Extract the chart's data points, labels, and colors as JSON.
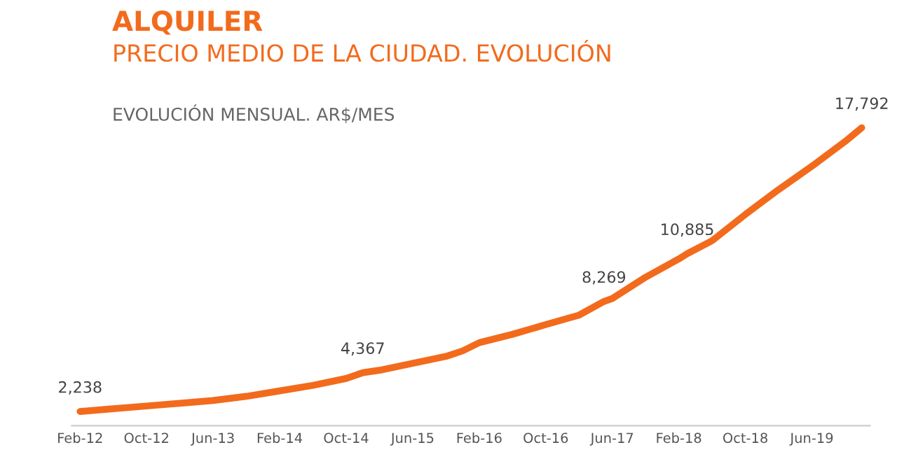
{
  "chart_data": {
    "type": "line",
    "title": "ALQUILER",
    "subtitle": "PRECIO MEDIO DE LA CIUDAD. EVOLUCIÓN",
    "annotations": [
      "EVOLUCIÓN MENSUAL. AR$/MES"
    ],
    "x": [
      "2012-02",
      "2012-06",
      "2012-10",
      "2013-02",
      "2013-06",
      "2013-10",
      "2014-02",
      "2014-06",
      "2014-10",
      "2014-12",
      "2015-02",
      "2015-06",
      "2015-10",
      "2015-12",
      "2016-02",
      "2016-06",
      "2016-10",
      "2017-02",
      "2017-05",
      "2017-06",
      "2017-10",
      "2018-02",
      "2018-03",
      "2018-06",
      "2018-10",
      "2019-02",
      "2019-06",
      "2019-10",
      "2019-12"
    ],
    "series": [
      {
        "color": "#f26b1d",
        "values": [
          2238,
          2390,
          2540,
          2690,
          2840,
          3070,
          3370,
          3670,
          4050,
          4367,
          4500,
          4880,
          5260,
          5560,
          6010,
          6470,
          7000,
          7520,
          8269,
          8430,
          9600,
          10600,
          10885,
          11600,
          13040,
          14400,
          15680,
          17040,
          17792
        ],
        "value_labels": [
          "2,238",
          null,
          null,
          null,
          null,
          null,
          null,
          null,
          null,
          "4,367",
          null,
          null,
          null,
          null,
          null,
          null,
          null,
          null,
          "8,269",
          null,
          null,
          null,
          "10,885",
          null,
          null,
          null,
          null,
          null,
          "17,792"
        ]
      }
    ],
    "xticks": [
      {
        "value": "2012-02",
        "label": "Feb-12"
      },
      {
        "value": "2012-10",
        "label": "Oct-12"
      },
      {
        "value": "2013-06",
        "label": "Jun-13"
      },
      {
        "value": "2014-02",
        "label": "Feb-14"
      },
      {
        "value": "2014-10",
        "label": "Oct-14"
      },
      {
        "value": "2015-06",
        "label": "Jun-15"
      },
      {
        "value": "2016-02",
        "label": "Feb-16"
      },
      {
        "value": "2016-10",
        "label": "Oct-16"
      },
      {
        "value": "2017-06",
        "label": "Jun-17"
      },
      {
        "value": "2018-02",
        "label": "Feb-18"
      },
      {
        "value": "2018-10",
        "label": "Oct-18"
      },
      {
        "value": "2019-06",
        "label": "Jun-19"
      }
    ],
    "xlim": [
      "2012-01",
      "2020-01"
    ],
    "grid": false,
    "legend": false,
    "marker": "none",
    "line_style": "solid"
  }
}
